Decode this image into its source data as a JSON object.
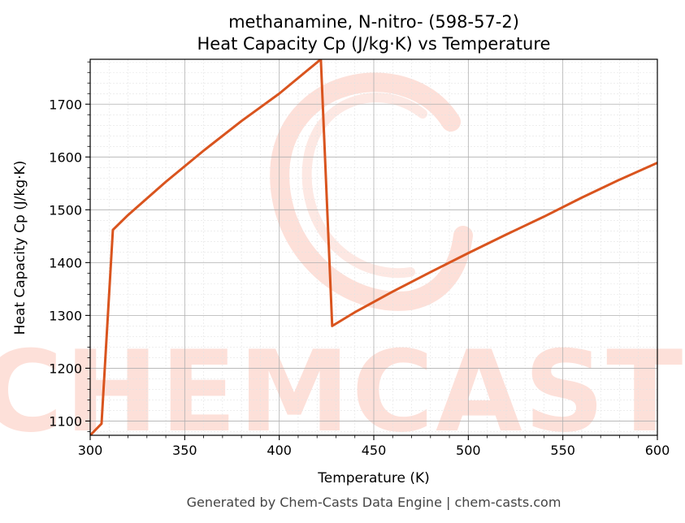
{
  "chart_data": {
    "type": "line",
    "title": "methanamine, N-nitro- (598-57-2)",
    "subtitle": "Heat Capacity Cp (J/kg·K) vs Temperature",
    "xlabel": "Temperature (K)",
    "ylabel": "Heat Capacity Cp (J/kg·K)",
    "xlim": [
      300,
      600
    ],
    "ylim": [
      1073,
      1785
    ],
    "xticks": [
      300,
      350,
      400,
      450,
      500,
      550,
      600
    ],
    "yticks": [
      1100,
      1200,
      1300,
      1400,
      1500,
      1600,
      1700
    ],
    "grid": true,
    "series": [
      {
        "color": "#d9541e",
        "points": [
          [
            300,
            1073
          ],
          [
            306,
            1095
          ],
          [
            312,
            1462
          ],
          [
            320,
            1490
          ],
          [
            340,
            1553
          ],
          [
            360,
            1612
          ],
          [
            380,
            1668
          ],
          [
            400,
            1720
          ],
          [
            422,
            1785
          ],
          [
            428,
            1280
          ],
          [
            440,
            1306
          ],
          [
            460,
            1345
          ],
          [
            480,
            1382
          ],
          [
            500,
            1418
          ],
          [
            520,
            1453
          ],
          [
            540,
            1487
          ],
          [
            560,
            1523
          ],
          [
            580,
            1557
          ],
          [
            600,
            1589
          ]
        ]
      }
    ]
  },
  "watermark": {
    "text": "CHEMCASTS"
  },
  "footer": {
    "text": "Generated by Chem-Casts Data Engine | chem-casts.com"
  }
}
